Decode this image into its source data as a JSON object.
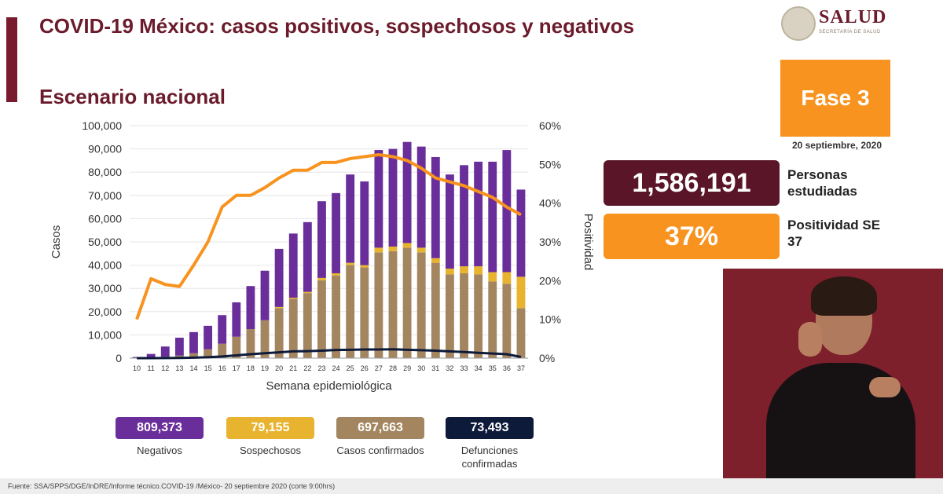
{
  "header": {
    "title": "COVID-19 México: casos positivos, sospechosos y negativos",
    "subtitle": "Escenario nacional"
  },
  "logo": {
    "name": "SALUD",
    "small": "SECRETARÍA DE SALUD"
  },
  "phase": {
    "label": "Fase 3",
    "date": "20 septiembre, 2020"
  },
  "kpis": {
    "studied_value": "1,586,191",
    "studied_label": "Personas estudiadas",
    "positivity_value": "37%",
    "positivity_label": "Positividad SE 37"
  },
  "stats": [
    {
      "value": "809,373",
      "label": "Negativos",
      "color": "#6a2e9a"
    },
    {
      "value": "79,155",
      "label": "Sospechosos",
      "color": "#e8b430"
    },
    {
      "value": "697,663",
      "label": "Casos confirmados",
      "color": "#a38660"
    },
    {
      "value": "73,493",
      "label": "Defunciones confirmadas",
      "color": "#0e1a3a"
    }
  ],
  "source": "Fuente: SSA/SPPS/DGE/InDRE/Informe técnico.COVID-19 /México- 20 septiembre 2020 (corte 9:00hrs)",
  "chart_data": {
    "type": "bar",
    "xlabel": "Semana epidemiológica",
    "ylabel": "Casos",
    "y2label": "Positividad",
    "categories": [
      "10",
      "11",
      "12",
      "13",
      "14",
      "15",
      "16",
      "17",
      "18",
      "19",
      "20",
      "21",
      "22",
      "23",
      "24",
      "25",
      "26",
      "27",
      "28",
      "29",
      "30",
      "31",
      "32",
      "33",
      "34",
      "35",
      "36",
      "37"
    ],
    "ylim": [
      0,
      100000
    ],
    "yticks": [
      "0",
      "10,000",
      "20,000",
      "30,000",
      "40,000",
      "50,000",
      "60,000",
      "70,000",
      "80,000",
      "90,000",
      "100,000"
    ],
    "y2lim": [
      0,
      60
    ],
    "y2ticks": [
      "0%",
      "10%",
      "20%",
      "30%",
      "40%",
      "50%",
      "60%"
    ],
    "colors": {
      "confirmados": "#a38660",
      "sospechosos": "#e8b430",
      "negativos": "#6a2e9a",
      "positividad": "#f7931e",
      "defunciones": "#0e1a3a"
    },
    "series": [
      {
        "name": "Casos confirmados",
        "values": [
          100,
          300,
          600,
          1100,
          2100,
          3800,
          6200,
          9200,
          12500,
          16300,
          21500,
          25500,
          28000,
          33500,
          35500,
          40000,
          39000,
          45500,
          46000,
          47500,
          45500,
          41000,
          36000,
          36500,
          36000,
          33000,
          32000,
          21500
        ]
      },
      {
        "name": "Sospechosos",
        "values": [
          0,
          0,
          0,
          0,
          0,
          0,
          0,
          0,
          0,
          0,
          500,
          500,
          500,
          1000,
          1000,
          1000,
          1000,
          2000,
          2000,
          2000,
          2000,
          2000,
          2500,
          3000,
          3500,
          4000,
          5000,
          13500
        ]
      },
      {
        "name": "Negativos",
        "values": [
          400,
          1500,
          4400,
          7700,
          9100,
          10100,
          12300,
          14800,
          18500,
          21300,
          25000,
          27600,
          30000,
          33000,
          34500,
          38000,
          36000,
          42000,
          42000,
          43500,
          43500,
          43500,
          40500,
          43500,
          45000,
          47500,
          52500,
          37500
        ]
      },
      {
        "name": "Positividad",
        "values": [
          10,
          20.5,
          19,
          18.5,
          24,
          30,
          39,
          42,
          42,
          44,
          46.5,
          48.5,
          48.5,
          50.5,
          50.5,
          51.5,
          52,
          52.5,
          52,
          51,
          49,
          46.5,
          45.5,
          44.5,
          43,
          41.5,
          39,
          37
        ]
      },
      {
        "name": "Defunciones",
        "values": [
          0,
          20,
          50,
          100,
          200,
          400,
          700,
          1200,
          1700,
          2100,
          2500,
          2900,
          3000,
          3200,
          3500,
          3600,
          3700,
          3700,
          3800,
          3600,
          3400,
          3200,
          2900,
          2600,
          2300,
          2000,
          1700,
          500
        ]
      }
    ]
  }
}
